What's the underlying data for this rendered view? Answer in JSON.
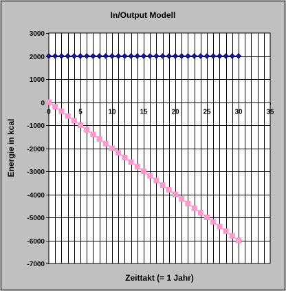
{
  "chart_data": {
    "type": "scatter",
    "title": "In/Output Modell",
    "xlabel": "Zeittakt (= 1 Jahr)",
    "ylabel": "Energie in kcal",
    "xlim": [
      0,
      35
    ],
    "ylim": [
      -7000,
      3000
    ],
    "xticks": [
      0,
      5,
      10,
      15,
      20,
      25,
      30,
      35
    ],
    "yticks": [
      3000,
      2000,
      1000,
      0,
      -1000,
      -2000,
      -3000,
      -4000,
      -5000,
      -6000,
      -7000
    ],
    "grid": true,
    "legend": "none",
    "colors": {
      "background": "#c0c0c0",
      "plot_area": "#ffffff",
      "series1": "#000080",
      "series1_fill": "#1a1a8c",
      "series2": "#ff99cc"
    },
    "series": [
      {
        "marker": "diamond",
        "x": [
          0,
          1,
          2,
          3,
          4,
          5,
          6,
          7,
          8,
          9,
          10,
          11,
          12,
          13,
          14,
          15,
          16,
          17,
          18,
          19,
          20,
          21,
          22,
          23,
          24,
          25,
          26,
          27,
          28,
          29,
          30
        ],
        "values": [
          2000,
          2000,
          2000,
          2000,
          2000,
          2000,
          2000,
          2000,
          2000,
          2000,
          2000,
          2000,
          2000,
          2000,
          2000,
          2000,
          2000,
          2000,
          2000,
          2000,
          2000,
          2000,
          2000,
          2000,
          2000,
          2000,
          2000,
          2000,
          2000,
          2000,
          2000
        ]
      },
      {
        "marker": "square",
        "x": [
          0,
          1,
          2,
          3,
          4,
          5,
          6,
          7,
          8,
          9,
          10,
          11,
          12,
          13,
          14,
          15,
          16,
          17,
          18,
          19,
          20,
          21,
          22,
          23,
          24,
          25,
          26,
          27,
          28,
          29,
          30
        ],
        "values": [
          0,
          -200,
          -400,
          -600,
          -800,
          -1000,
          -1200,
          -1400,
          -1600,
          -1800,
          -2000,
          -2200,
          -2400,
          -2600,
          -2800,
          -3000,
          -3200,
          -3400,
          -3600,
          -3800,
          -4000,
          -4200,
          -4400,
          -4600,
          -4800,
          -5000,
          -5200,
          -5400,
          -5600,
          -5800,
          -6000
        ]
      }
    ]
  }
}
